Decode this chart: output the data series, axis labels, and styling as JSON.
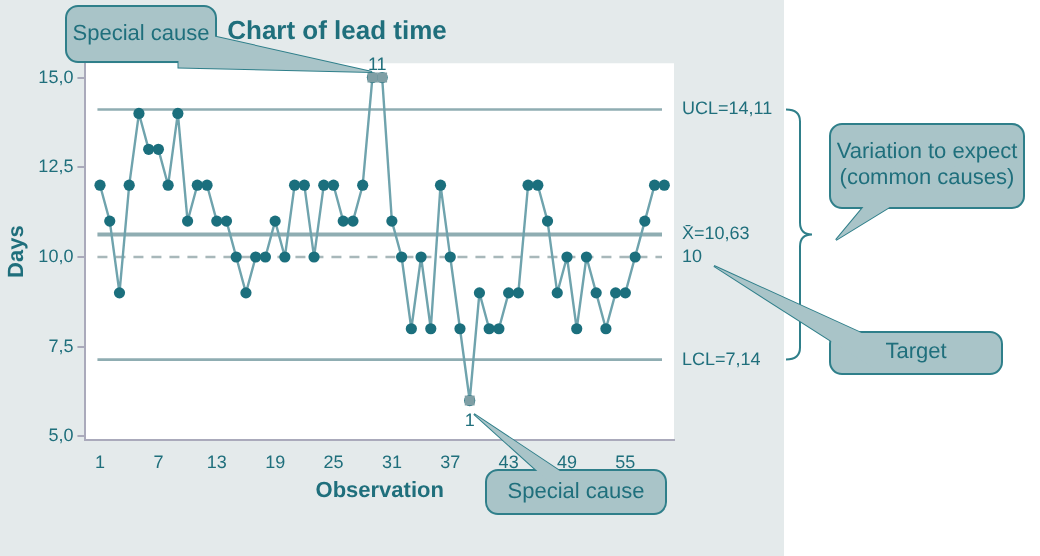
{
  "chart_data": {
    "type": "line",
    "title": "Chart of lead time",
    "xlabel": "Observation",
    "ylabel": "Days",
    "x": [
      1,
      2,
      3,
      4,
      5,
      6,
      7,
      8,
      9,
      10,
      11,
      12,
      13,
      14,
      15,
      16,
      17,
      18,
      19,
      20,
      21,
      22,
      23,
      24,
      25,
      26,
      27,
      28,
      29,
      30,
      31,
      32,
      33,
      34,
      35,
      36,
      37,
      38,
      39,
      40,
      41,
      42,
      43,
      44,
      45,
      46,
      47,
      48,
      49,
      50,
      51,
      52,
      53,
      54,
      55,
      56,
      57,
      58,
      59
    ],
    "series": [
      {
        "type": "line",
        "color": "#1b6f7d",
        "values": [
          12,
          11,
          9,
          12,
          14,
          13,
          13,
          12,
          14,
          11,
          12,
          12,
          11,
          11,
          10,
          9,
          10,
          10,
          11,
          10,
          12,
          12,
          10,
          12,
          12,
          11,
          11,
          12,
          15,
          15,
          11,
          10,
          8,
          10,
          8,
          12,
          10,
          8,
          6,
          9,
          8,
          8,
          9,
          9,
          12,
          12,
          11,
          9,
          10,
          8,
          10,
          9,
          8,
          9,
          9,
          10,
          11,
          12,
          12
        ]
      },
      {
        "type": "scatter",
        "color": "#7f9fa5",
        "marker": "square",
        "x": [
          29,
          30,
          39
        ],
        "values": [
          15,
          15,
          6
        ]
      }
    ],
    "xlim": [
      -0.5,
      60
    ],
    "xticks": [
      1,
      7,
      13,
      19,
      25,
      31,
      37,
      43,
      49,
      55
    ],
    "ylim": [
      4.9,
      15.4
    ],
    "yticks": [
      {
        "value": 5,
        "label": "5,0"
      },
      {
        "value": 7.5,
        "label": "7,5"
      },
      {
        "value": 10,
        "label": "10,0"
      },
      {
        "value": 12.5,
        "label": "12,5"
      },
      {
        "value": 15,
        "label": "15,0"
      }
    ],
    "ref_lines": [
      {
        "axis": "y",
        "value": 14.11,
        "label": "UCL=14,11",
        "color": "#8fadb2",
        "line_style": "solid"
      },
      {
        "axis": "y",
        "value": 10.63,
        "label": "X̄=10,63",
        "color": "#8fadb2",
        "line_style": "solid"
      },
      {
        "axis": "y",
        "value": 10,
        "label": "10",
        "color": "#a8b8ba",
        "line_style": "dashed"
      },
      {
        "axis": "y",
        "value": 7.14,
        "label": "LCL=7,14",
        "color": "#8fadb2",
        "line_style": "solid"
      }
    ],
    "annotations": [
      "Special cause",
      {
        "text": "11",
        "x": 29.5,
        "y": 15
      },
      "Variation to expect (common causes)",
      "Target",
      "Special cause",
      {
        "text": "1",
        "x": 39,
        "y": 6
      }
    ],
    "marker": "circle",
    "line_style": "solid",
    "grid": false,
    "legend": false
  }
}
